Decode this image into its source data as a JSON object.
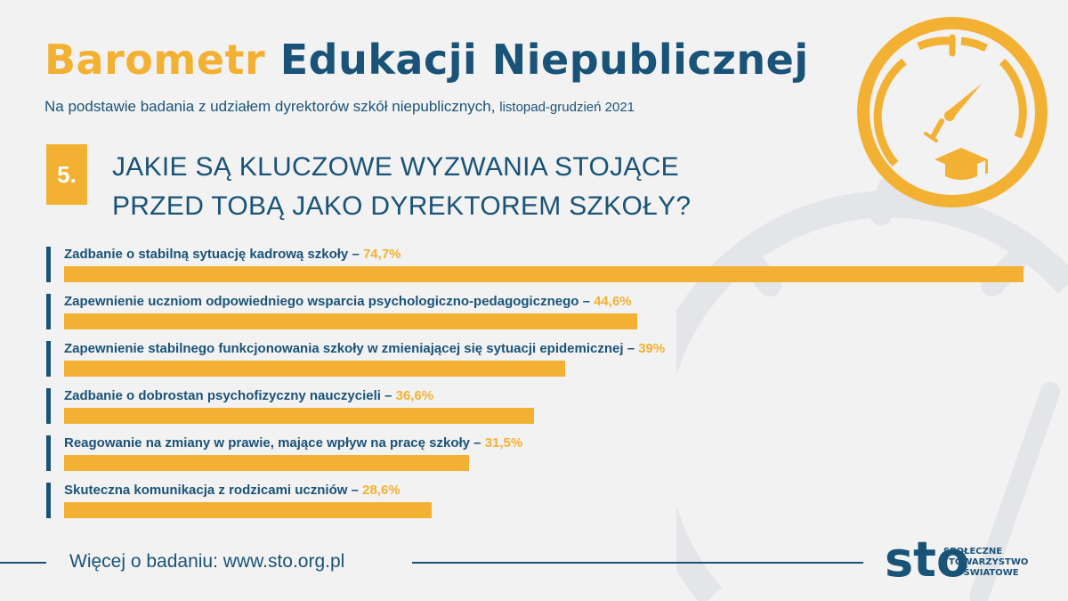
{
  "header": {
    "title_word1": "Barometr",
    "title_word2": "Edukacji Niepublicznej",
    "subtitle_main": "Na podstawie badania z udziałem dyrektorów szkół niepublicznych,",
    "subtitle_date": "listopad-grudzień 2021"
  },
  "question": {
    "number": "5.",
    "line1": "JAKIE SĄ KLUCZOWE WYZWANIA STOJĄCE",
    "line2": "PRZED TOBĄ JAKO DYREKTOREM SZKOŁY?"
  },
  "chart_data": {
    "type": "bar",
    "orientation": "horizontal",
    "categories": [
      "Zadbanie o stabilną sytuację kadrową szkoły",
      "Zapewnienie uczniom odpowiedniego wsparcia psychologiczno-pedagogicznego",
      "Zapewnienie stabilnego funkcjonowania szkoły w zmieniającej się sytuacji epidemicznej",
      "Zadbanie o dobrostan psychofizyczny nauczycieli",
      "Reagowanie na zmiany w prawie, mające wpływ na pracę szkoły",
      "Skuteczna komunikacja z rodzicami uczniów"
    ],
    "values": [
      74.7,
      44.6,
      39,
      36.6,
      31.5,
      28.6
    ],
    "value_labels": [
      "74,7%",
      "44,6%",
      "39%",
      "36,6%",
      "31,5%",
      "28,6%"
    ],
    "xlim": [
      0,
      74.7
    ],
    "grid": false,
    "legend": "none"
  },
  "footer": {
    "text": "Więcej o badaniu: www.sto.org.pl",
    "logo_letters": "sto",
    "org_line1": "SPOŁECZNE",
    "org_line2": "TOWARZYSTWO",
    "org_line3": "OŚWIATOWE"
  },
  "colors": {
    "accent_orange": "#f3b133",
    "navy": "#1a5378",
    "background": "#f2f2f2"
  },
  "icons": {
    "main": "gauge-with-graduation-cap-icon",
    "background": "gauge-watermark"
  }
}
